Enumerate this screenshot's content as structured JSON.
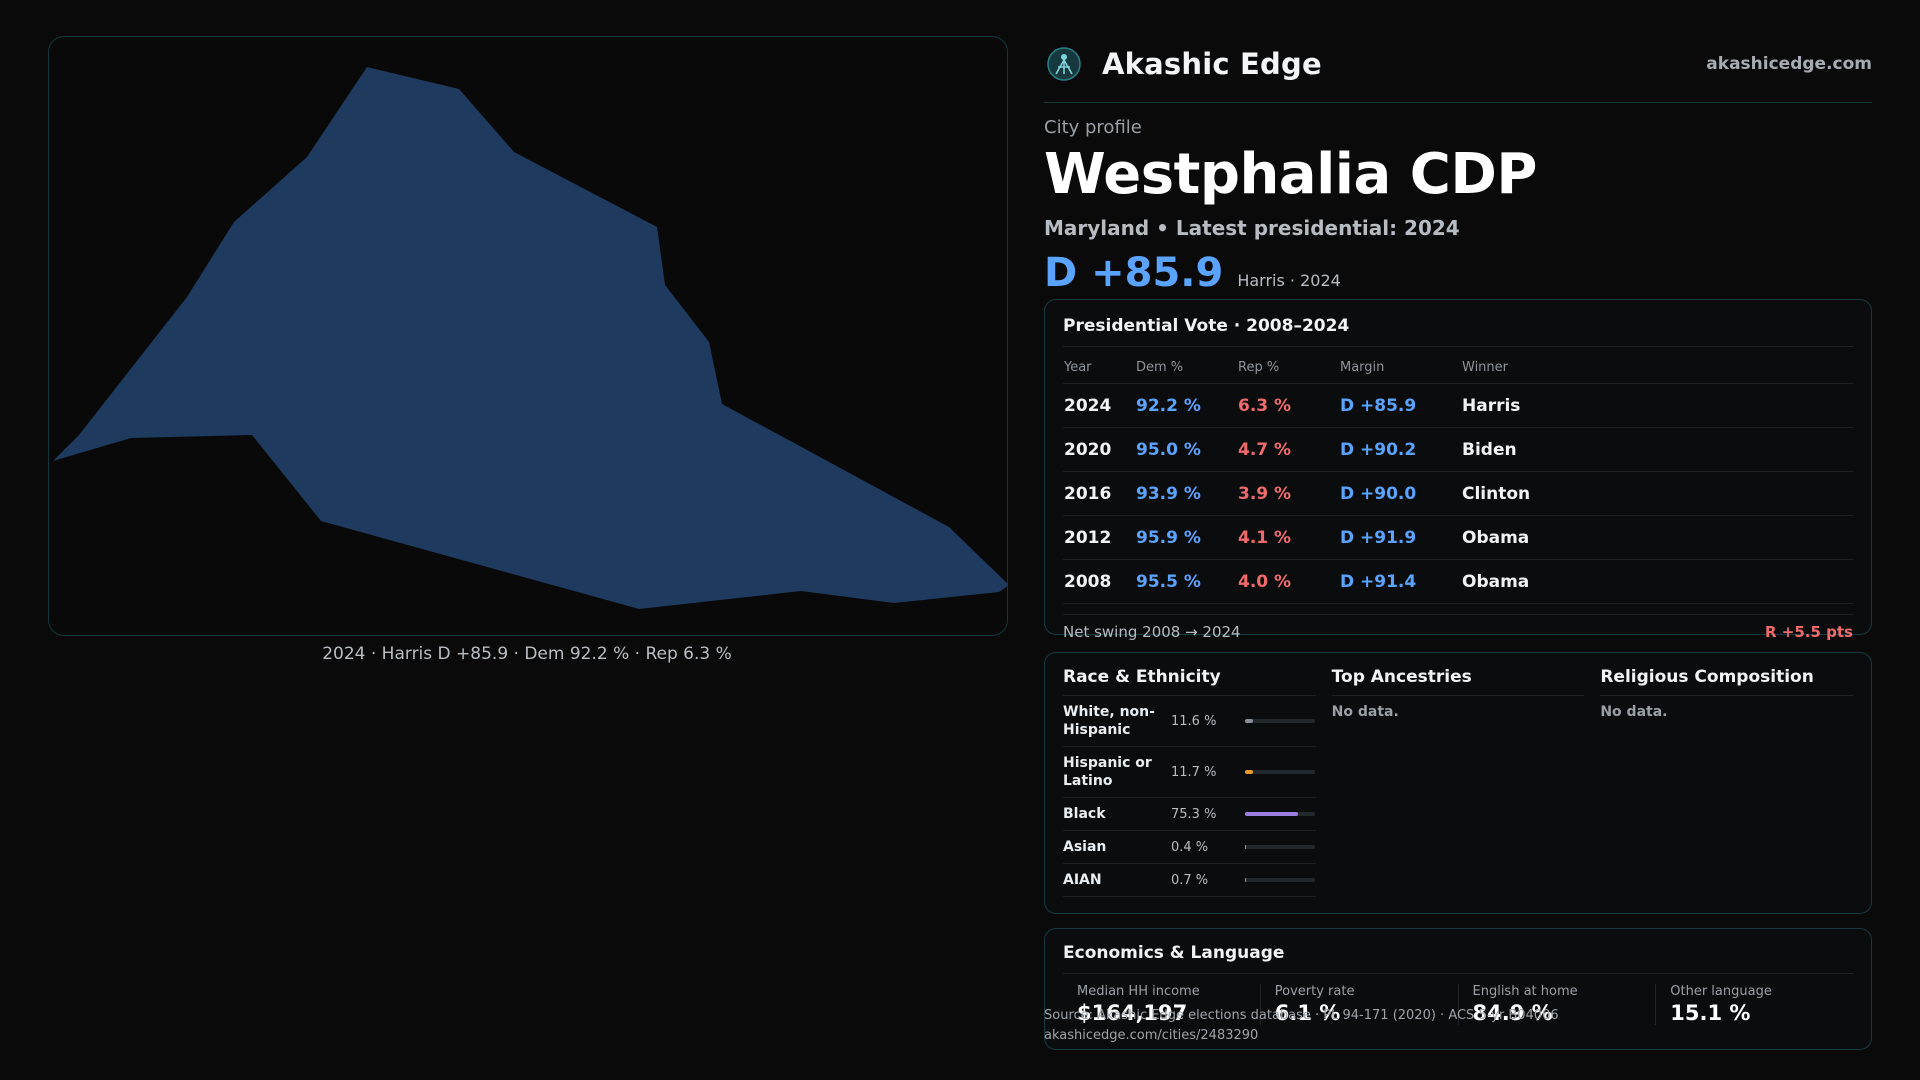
{
  "brand": {
    "name": "Akashic Edge",
    "url": "akashicedge.com"
  },
  "profile": {
    "kicker": "City profile",
    "title": "Westphalia CDP",
    "subtitle": "Maryland • Latest presidential: 2024",
    "margin": "D +85.9",
    "winner_line": "Harris · 2024"
  },
  "map": {
    "caption": "2024 · Harris D +85.9 · Dem 92.2 % · Rep 6.3 %",
    "fill_color": "#1f3a5f"
  },
  "vote": {
    "title": "Presidential Vote · 2008–2024",
    "headers": [
      "Year",
      "Dem %",
      "Rep %",
      "Margin",
      "Winner"
    ],
    "rows": [
      [
        "2024",
        "92.2 %",
        "6.3 %",
        "D +85.9",
        "Harris"
      ],
      [
        "2020",
        "95.0 %",
        "4.7 %",
        "D +90.2",
        "Biden"
      ],
      [
        "2016",
        "93.9 %",
        "3.9 %",
        "D +90.0",
        "Clinton"
      ],
      [
        "2012",
        "95.9 %",
        "4.1 %",
        "D +91.9",
        "Obama"
      ],
      [
        "2008",
        "95.5 %",
        "4.0 %",
        "D +91.4",
        "Obama"
      ]
    ],
    "swing_label": "Net swing 2008 → 2024",
    "swing_value": "R +5.5 pts"
  },
  "race": {
    "title": "Race & Ethnicity",
    "rows": [
      {
        "label": "White, non-Hispanic",
        "value": "11.6 %",
        "share": 0.116,
        "color": "#8a9099"
      },
      {
        "label": "Hispanic or Latino",
        "value": "11.7 %",
        "share": 0.117,
        "color": "#e89a2c"
      },
      {
        "label": "Black",
        "value": "75.3 %",
        "share": 0.753,
        "color": "#9b7fe0"
      },
      {
        "label": "Asian",
        "value": "0.4 %",
        "share": 0.004,
        "color": "#5aa3ff"
      },
      {
        "label": "AIAN",
        "value": "0.7 %",
        "share": 0.007,
        "color": "#5aa3ff"
      }
    ]
  },
  "ancestry": {
    "title": "Top Ancestries",
    "empty": "No data."
  },
  "religion": {
    "title": "Religious Composition",
    "empty": "No data."
  },
  "econ": {
    "title": "Economics & Language",
    "items": [
      {
        "label": "Median HH income",
        "value": "$164,197"
      },
      {
        "label": "Poverty rate",
        "value": "6.1 %"
      },
      {
        "label": "English at home",
        "value": "84.9 %"
      },
      {
        "label": "Other language",
        "value": "15.1 %"
      }
    ]
  },
  "footer": {
    "source": "Source: Akashic Edge elections database · PL 94-171 (2020) · ACS 5-yr B04006",
    "link": "akashicedge.com/cities/2483290"
  }
}
